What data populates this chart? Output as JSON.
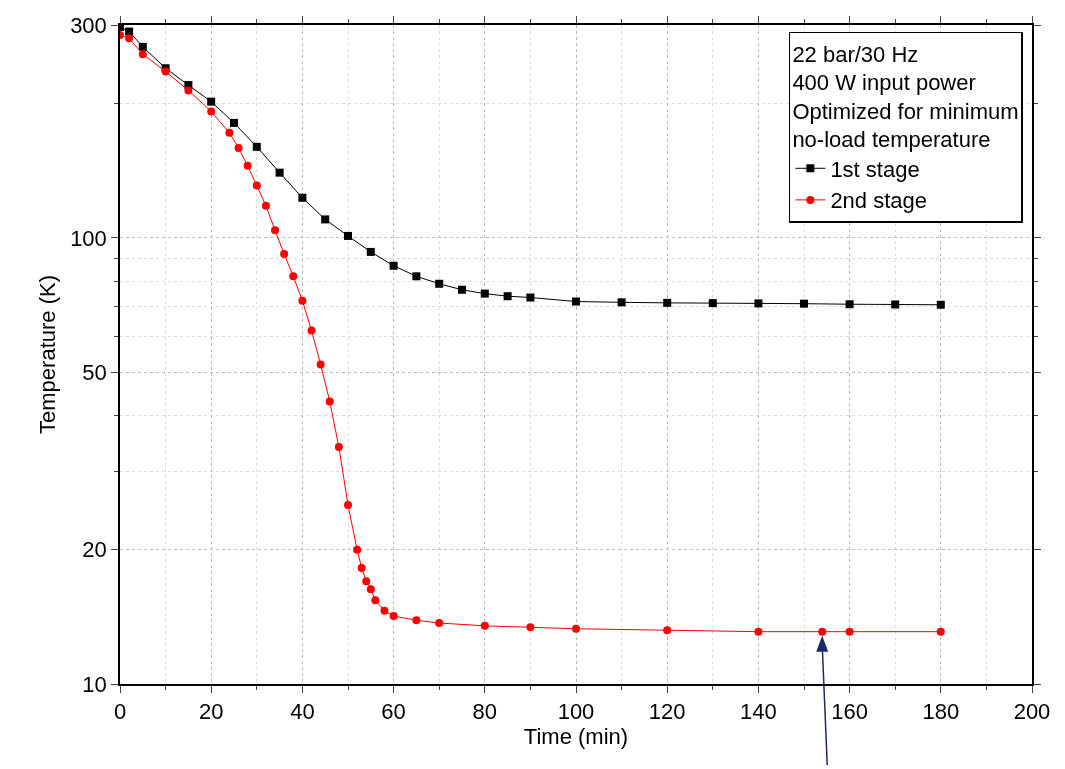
{
  "chart_data": {
    "type": "line",
    "xlabel": "Time (min)",
    "ylabel": "Temperature (K)",
    "legend_title": "22 bar/30 Hz\n400 W input power\nOptimized for minimum\nno-load temperature",
    "log": "y",
    "grid": true,
    "legend": "top right",
    "line_style": "solid",
    "xlim": [
      0,
      200
    ],
    "xticks": [
      0,
      20,
      40,
      60,
      80,
      100,
      120,
      140,
      160,
      180,
      200
    ],
    "ylim": [
      10,
      300
    ],
    "yticks": [
      10,
      20,
      50,
      100,
      300
    ],
    "series": [
      {
        "name": "1st stage",
        "color": "#000000",
        "marker": "square",
        "x": [
          0,
          2,
          5,
          10,
          15,
          20,
          25,
          30,
          35,
          40,
          45,
          50,
          55,
          60,
          65,
          70,
          75,
          80,
          85,
          90,
          100,
          110,
          120,
          130,
          140,
          150,
          160,
          170,
          180
        ],
        "values": [
          297,
          290,
          268,
          240,
          220,
          202,
          181,
          160,
          140,
          123,
          110,
          101,
          93,
          86.6,
          82,
          78.9,
          76.5,
          75,
          74,
          73.5,
          72,
          71.7,
          71.5,
          71.4,
          71.3,
          71.2,
          71,
          70.9,
          70.8
        ]
      },
      {
        "name": "2nd stage",
        "color": "#ff0000",
        "marker": "circle",
        "x": [
          0,
          2,
          5,
          10,
          15,
          20,
          24,
          26,
          28,
          30,
          32,
          34,
          36,
          38,
          40,
          42,
          44,
          46,
          48,
          50,
          52,
          53,
          54,
          55,
          56,
          58,
          60,
          65,
          70,
          80,
          90,
          100,
          120,
          140,
          154,
          160,
          180
        ],
        "values": [
          285,
          280,
          258,
          236,
          214,
          192,
          172,
          159,
          145,
          131,
          118,
          104,
          92,
          82,
          72.3,
          62,
          52,
          43,
          34,
          25.2,
          20,
          18.2,
          17,
          16.3,
          15.4,
          14.6,
          14.2,
          13.9,
          13.7,
          13.5,
          13.4,
          13.3,
          13.2,
          13.1,
          13.1,
          13.1,
          13.1
        ]
      }
    ]
  }
}
